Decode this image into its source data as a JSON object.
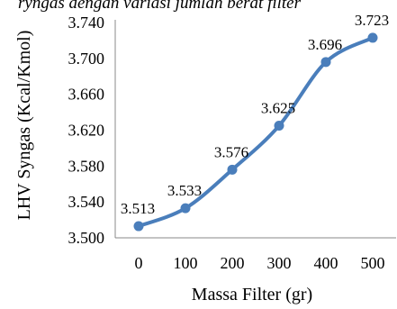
{
  "page": {
    "title": "ryngas dengan variasi jumlah berat filter"
  },
  "chart_data": {
    "type": "line",
    "title": "",
    "xlabel": "Massa Filter (gr)",
    "ylabel": "LHV Syngas (Kcal/Kmol)",
    "categories": [
      "0",
      "100",
      "200",
      "300",
      "400",
      "500"
    ],
    "series": [
      {
        "name": "",
        "values": [
          3.513,
          3.533,
          3.576,
          3.625,
          3.696,
          3.723
        ],
        "labels": [
          "3.513",
          "3.533",
          "3.576",
          "3.625",
          "3.696",
          "3.723"
        ]
      }
    ],
    "ylim": [
      3.5,
      3.74
    ],
    "yticks": [
      3.5,
      3.54,
      3.58,
      3.62,
      3.66,
      3.7,
      3.74
    ],
    "ytick_labels": [
      "3.500",
      "3.540",
      "3.580",
      "3.620",
      "3.660",
      "3.700",
      "3.740"
    ],
    "grid": false,
    "legend": "none",
    "line_color": "#4a7ebb",
    "marker_color": "#4a7ebb",
    "smooth": true
  }
}
